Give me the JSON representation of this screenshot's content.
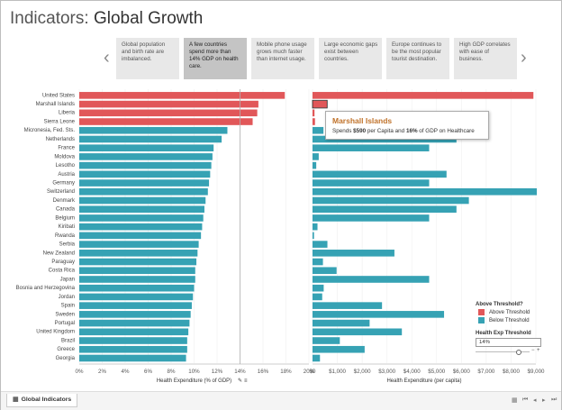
{
  "title": {
    "prefix": "Indicators:",
    "main": "Global Growth"
  },
  "story": {
    "prev": "‹",
    "next": "›",
    "points": [
      {
        "text": "Global population and birth rate are imbalanced."
      },
      {
        "text": "A few countries spend more than 14% GDP on health care."
      },
      {
        "text": "Mobile phone usage grows much faster than internet usage."
      },
      {
        "text": "Large economic gaps exist between countries."
      },
      {
        "text": "Europe continues to be the most popular tourist destination."
      },
      {
        "text": "High GDP correlates with ease of business."
      }
    ],
    "active_index": 1
  },
  "colors": {
    "above": "#e15759",
    "below": "#36a2b4"
  },
  "chart_data": [
    {
      "type": "bar",
      "orientation": "horizontal",
      "xlabel": "Health Expenditure (% of GDP)",
      "xlim": [
        0,
        20
      ],
      "ticks": [
        "0%",
        "2%",
        "4%",
        "6%",
        "8%",
        "10%",
        "12%",
        "14%",
        "16%",
        "18%",
        "20%"
      ],
      "reference_line": 14,
      "categories": [
        "United States",
        "Marshall Islands",
        "Liberia",
        "Sierra Leone",
        "Micronesia, Fed. Sts.",
        "Netherlands",
        "France",
        "Moldova",
        "Lesotho",
        "Austria",
        "Germany",
        "Switzerland",
        "Denmark",
        "Canada",
        "Belgium",
        "Kiribati",
        "Rwanda",
        "Serbia",
        "New Zealand",
        "Paraguay",
        "Costa Rica",
        "Japan",
        "Bosnia and Herzegovina",
        "Jordan",
        "Spain",
        "Sweden",
        "Portugal",
        "United Kingdom",
        "Brazil",
        "Greece",
        "Georgia"
      ],
      "values": [
        17.9,
        15.6,
        15.5,
        15.1,
        12.9,
        12.4,
        11.7,
        11.6,
        11.5,
        11.4,
        11.3,
        11.2,
        11.0,
        10.9,
        10.8,
        10.7,
        10.6,
        10.4,
        10.3,
        10.2,
        10.1,
        10.1,
        10.0,
        9.9,
        9.8,
        9.7,
        9.6,
        9.5,
        9.4,
        9.4,
        9.3
      ],
      "above_threshold": [
        true,
        true,
        true,
        true,
        false,
        false,
        false,
        false,
        false,
        false,
        false,
        false,
        false,
        false,
        false,
        false,
        false,
        false,
        false,
        false,
        false,
        false,
        false,
        false,
        false,
        false,
        false,
        false,
        false,
        false,
        false
      ]
    },
    {
      "type": "bar",
      "orientation": "horizontal",
      "xlabel": "Health Expenditure (per capita)",
      "xlim": [
        0,
        9000
      ],
      "ticks": [
        "$0",
        "$1,000",
        "$2,000",
        "$3,000",
        "$4,000",
        "$5,000",
        "$6,000",
        "$7,000",
        "$8,000",
        "$9,000"
      ],
      "categories": [
        "United States",
        "Marshall Islands",
        "Liberia",
        "Sierra Leone",
        "Micronesia, Fed. Sts.",
        "Netherlands",
        "France",
        "Moldova",
        "Lesotho",
        "Austria",
        "Germany",
        "Switzerland",
        "Denmark",
        "Canada",
        "Belgium",
        "Kiribati",
        "Rwanda",
        "Serbia",
        "New Zealand",
        "Paraguay",
        "Costa Rica",
        "Japan",
        "Bosnia and Herzegovina",
        "Jordan",
        "Spain",
        "Sweden",
        "Portugal",
        "United Kingdom",
        "Brazil",
        "Greece",
        "Georgia"
      ],
      "values": [
        8900,
        590,
        80,
        100,
        440,
        5800,
        4700,
        250,
        150,
        5400,
        4700,
        9100,
        6300,
        5800,
        4700,
        200,
        60,
        600,
        3300,
        420,
        970,
        4700,
        450,
        390,
        2800,
        5300,
        2300,
        3600,
        1100,
        2100,
        300
      ],
      "above_threshold": [
        true,
        true,
        true,
        true,
        false,
        false,
        false,
        false,
        false,
        false,
        false,
        false,
        false,
        false,
        false,
        false,
        false,
        false,
        false,
        false,
        false,
        false,
        false,
        false,
        false,
        false,
        false,
        false,
        false,
        false,
        false
      ]
    }
  ],
  "tooltip": {
    "title": "Marshall Islands",
    "prefix": "Spends",
    "amount": "$590",
    "mid": "per Capita and",
    "pct": "16%",
    "suffix": "of GDP on Healthcare"
  },
  "legend": {
    "title": "Above Threshold?",
    "items": [
      {
        "label": "Above Threshold"
      },
      {
        "label": "Below Threshold"
      }
    ]
  },
  "threshold": {
    "title": "Health Exp Threshold",
    "value": "14%",
    "minus": "−",
    "plus": "+"
  },
  "statusbar": {
    "sheet": "Global Indicators"
  }
}
